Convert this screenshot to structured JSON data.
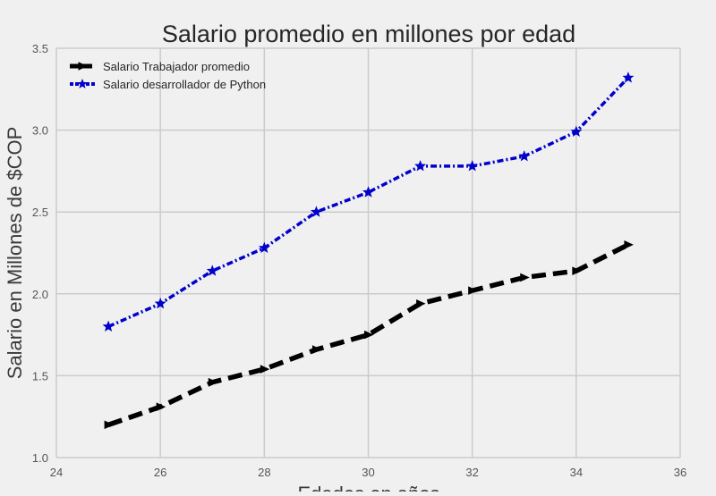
{
  "chart_data": {
    "type": "line",
    "title": "Salario promedio en millones por edad",
    "xlabel": "Edades en años",
    "ylabel": "Salario en Millones de $COP",
    "xlim": [
      24,
      36
    ],
    "ylim": [
      1.0,
      3.5
    ],
    "xticks": [
      "24",
      "26",
      "28",
      "30",
      "32",
      "34",
      "36"
    ],
    "yticks": [
      "1.0",
      "1.5",
      "2.0",
      "2.5",
      "3.0",
      "3.5"
    ],
    "grid": true,
    "legend_position": "top-left",
    "x": [
      25,
      26,
      27,
      28,
      29,
      30,
      31,
      32,
      33,
      34,
      35
    ],
    "series": [
      {
        "name": "Salario Trabajador promedio",
        "color": "#000000",
        "linestyle": "dashed",
        "marker": "triangle-right",
        "values": [
          1.2,
          1.31,
          1.46,
          1.54,
          1.66,
          1.75,
          1.94,
          2.02,
          2.1,
          2.14,
          2.3
        ]
      },
      {
        "name": "Salario desarrollador de Python",
        "color": "#0000cc",
        "linestyle": "dotted",
        "marker": "star",
        "values": [
          1.8,
          1.94,
          2.14,
          2.28,
          2.5,
          2.62,
          2.78,
          2.78,
          2.84,
          2.99,
          3.32
        ]
      }
    ]
  }
}
